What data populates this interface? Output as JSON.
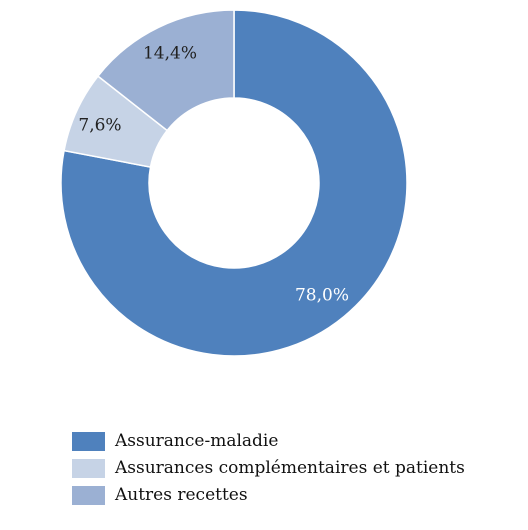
{
  "chart_data": {
    "type": "pie",
    "donut": true,
    "title": "",
    "slices": [
      {
        "name": "Assurance-maladie",
        "value": 78.0,
        "label": "78,0%",
        "color": "#4f81bd",
        "label_color": "#ffffff"
      },
      {
        "name": "Assurances complémentaires et patients",
        "value": 7.6,
        "label": "7,6%",
        "color": "#c6d3e6",
        "label_color": "#222222"
      },
      {
        "name": "Autres recettes",
        "value": 14.4,
        "label": "14,4%",
        "color": "#9bb0d3",
        "label_color": "#222222"
      }
    ],
    "legend_position": "bottom-left"
  }
}
